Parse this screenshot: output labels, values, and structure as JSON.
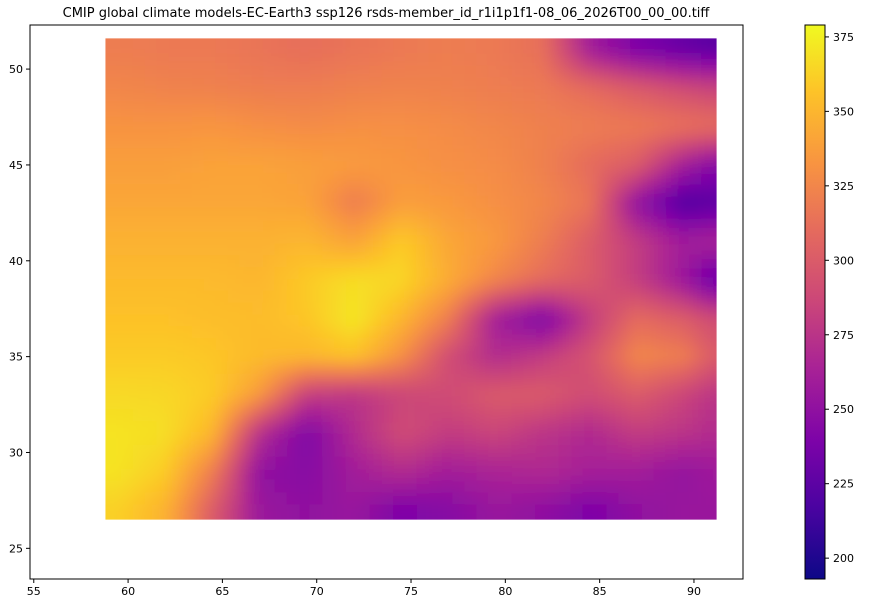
{
  "chart_data": {
    "type": "heatmap",
    "title": "CMIP global climate models-EC-Earth3 ssp126 rsds-member_id_r1i1p1f1-08_06_2026T00_00_00.tiff",
    "xlabel": "",
    "ylabel": "",
    "xlim": [
      54.8,
      92.6
    ],
    "ylim": [
      23.4,
      52.3
    ],
    "x_ticks": [
      55,
      60,
      65,
      70,
      75,
      80,
      85,
      90
    ],
    "y_ticks": [
      25,
      30,
      35,
      40,
      45,
      50
    ],
    "data_extent": {
      "x": [
        58.8,
        91.2
      ],
      "y": [
        26.5,
        51.6
      ]
    },
    "grid": false,
    "colormap": "plasma",
    "colorbar": {
      "range": [
        193,
        379
      ],
      "ticks": [
        200,
        225,
        250,
        275,
        300,
        325,
        350,
        375
      ],
      "placement": "right"
    },
    "grid_x": [
      59.5,
      62,
      64.5,
      67,
      69.5,
      72,
      74.5,
      77,
      79.5,
      82,
      84.5,
      87,
      89.5,
      91
    ],
    "grid_y": [
      51,
      49,
      47,
      45,
      43,
      41,
      39,
      37,
      35,
      33,
      31,
      29,
      27
    ],
    "values": [
      [
        320,
        318,
        318,
        315,
        312,
        315,
        318,
        320,
        318,
        312,
        260,
        240,
        230,
        225
      ],
      [
        325,
        323,
        322,
        320,
        320,
        322,
        323,
        322,
        320,
        318,
        310,
        300,
        290,
        285
      ],
      [
        332,
        332,
        333,
        330,
        328,
        330,
        330,
        328,
        325,
        322,
        320,
        318,
        315,
        312
      ],
      [
        338,
        338,
        340,
        340,
        338,
        336,
        333,
        330,
        328,
        322,
        310,
        300,
        260,
        245
      ],
      [
        342,
        342,
        342,
        342,
        340,
        320,
        338,
        335,
        330,
        325,
        315,
        250,
        220,
        225
      ],
      [
        348,
        348,
        348,
        348,
        350,
        340,
        360,
        342,
        335,
        320,
        300,
        280,
        260,
        265
      ],
      [
        352,
        352,
        352,
        350,
        360,
        368,
        365,
        345,
        325,
        310,
        300,
        280,
        255,
        230
      ],
      [
        356,
        356,
        354,
        353,
        358,
        372,
        350,
        320,
        260,
        240,
        280,
        310,
        300,
        290
      ],
      [
        360,
        360,
        358,
        352,
        350,
        355,
        330,
        290,
        270,
        280,
        295,
        325,
        320,
        300
      ],
      [
        366,
        365,
        360,
        335,
        280,
        275,
        285,
        290,
        300,
        300,
        290,
        300,
        285,
        275
      ],
      [
        370,
        368,
        350,
        270,
        240,
        270,
        290,
        280,
        285,
        275,
        268,
        280,
        275,
        270
      ],
      [
        370,
        360,
        320,
        250,
        245,
        260,
        270,
        260,
        265,
        268,
        262,
        260,
        252,
        258
      ],
      [
        362,
        348,
        300,
        255,
        250,
        255,
        240,
        245,
        255,
        250,
        240,
        250,
        255,
        255
      ]
    ]
  }
}
